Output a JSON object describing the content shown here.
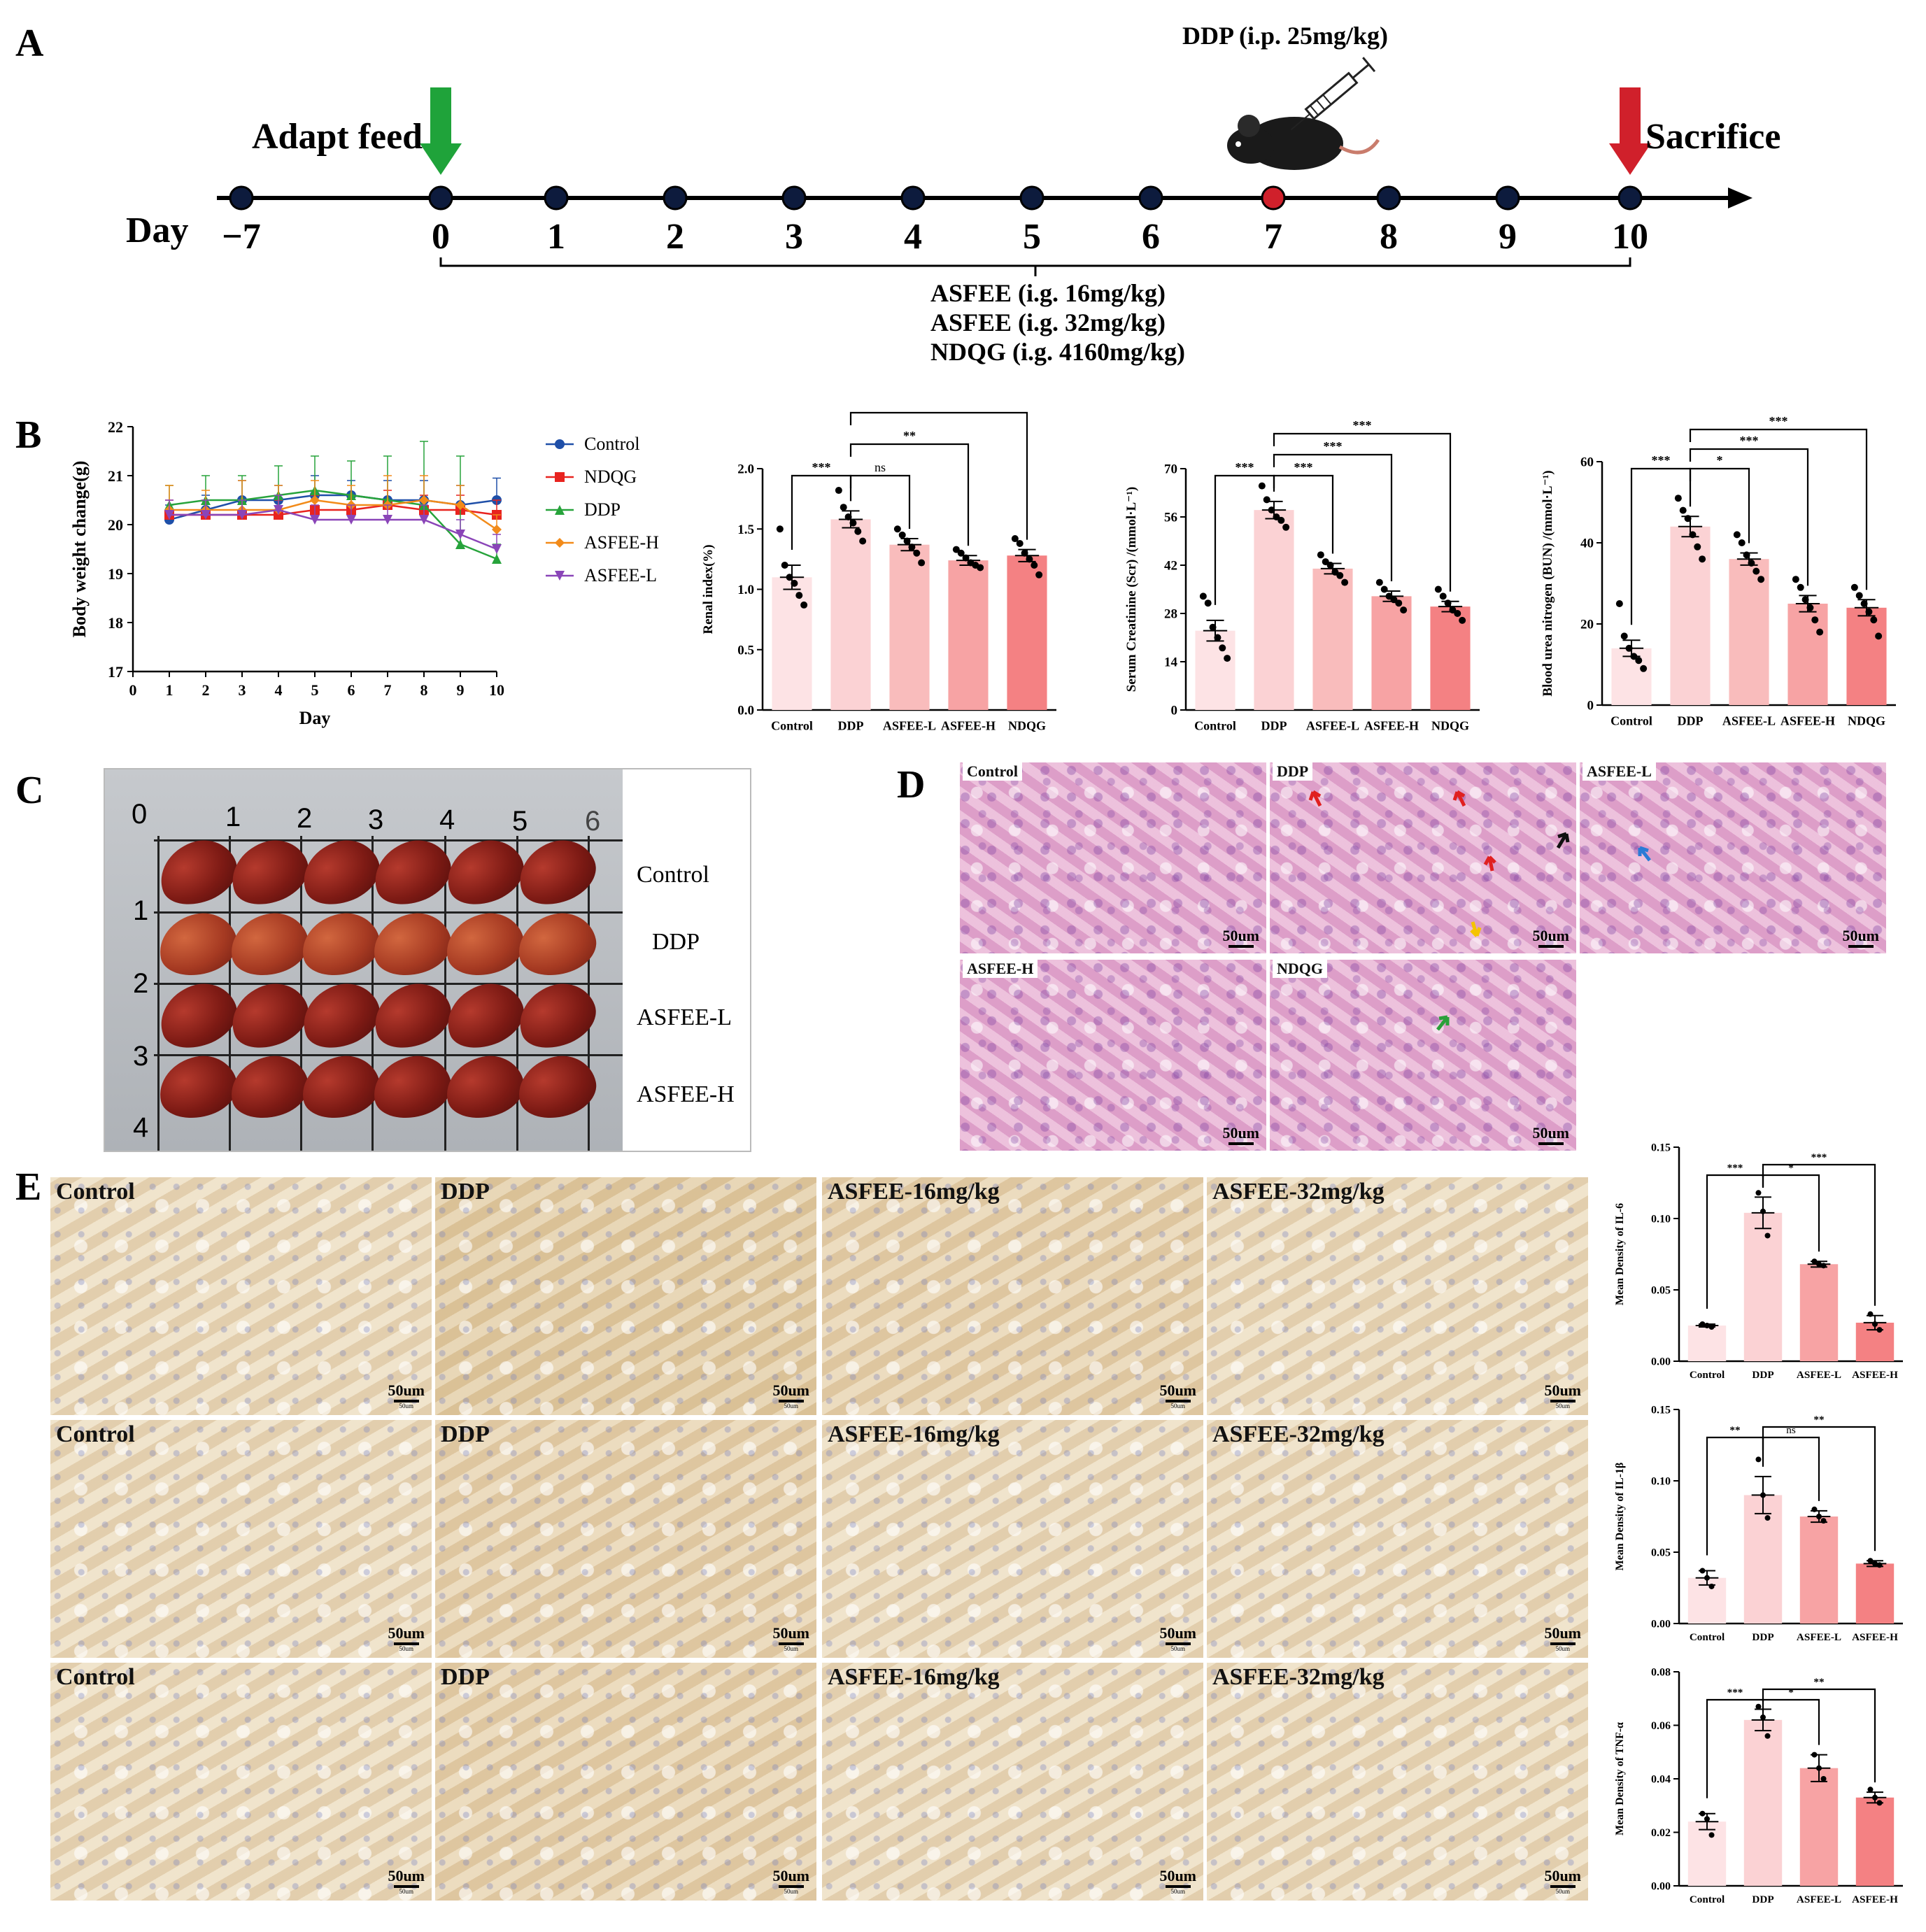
{
  "panel_letters": {
    "a": "A",
    "b": "B",
    "c": "C",
    "d": "D",
    "e": "E"
  },
  "panel_a": {
    "day_label": "Day",
    "days": [
      "−7",
      "0",
      "1",
      "2",
      "3",
      "4",
      "5",
      "6",
      "7",
      "8",
      "9",
      "10"
    ],
    "adapt_label": "Adapt feed",
    "sacrifice_label": "Sacrifice",
    "ddp_label": "DDP (i.p. 25mg/kg)",
    "treatments": [
      "ASFEE (i.g. 16mg/kg)",
      "ASFEE (i.g. 32mg/kg)",
      "NDQG (i.g. 4160mg/kg)"
    ],
    "colors": {
      "adapt_arrow": "#1fa33a",
      "sacrifice_arrow": "#d0202b",
      "ddp_dot": "#d0202b",
      "node": "#0d1b3d"
    }
  },
  "chart_data": [
    {
      "id": "body_weight",
      "type": "line",
      "xlabel": "Day",
      "ylabel": "Body weight change(g)",
      "xlim": [
        0,
        10
      ],
      "ylim": [
        17,
        22
      ],
      "xticks": [
        "0",
        "1",
        "2",
        "3",
        "4",
        "5",
        "6",
        "7",
        "8",
        "9",
        "10"
      ],
      "yticks": [
        "17",
        "18",
        "19",
        "20",
        "21",
        "22"
      ],
      "x": [
        1,
        2,
        3,
        4,
        5,
        6,
        7,
        8,
        9,
        10
      ],
      "series": [
        {
          "name": "Control",
          "color": "#1f4fa8",
          "marker": "circle",
          "values": [
            20.1,
            20.3,
            20.5,
            20.5,
            20.6,
            20.6,
            20.5,
            20.5,
            20.4,
            20.5
          ],
          "err": [
            0.3,
            0.3,
            0.4,
            0.3,
            0.4,
            0.3,
            0.4,
            0.4,
            0.4,
            0.45
          ]
        },
        {
          "name": "NDQG",
          "color": "#e8231f",
          "marker": "square",
          "values": [
            20.2,
            20.2,
            20.2,
            20.2,
            20.3,
            20.3,
            20.4,
            20.3,
            20.3,
            20.2
          ],
          "err": [
            0.3,
            0.3,
            0.3,
            0.3,
            0.3,
            0.3,
            0.3,
            0.3,
            0.3,
            0.3
          ]
        },
        {
          "name": "DDP",
          "color": "#27a33b",
          "marker": "triangle",
          "values": [
            20.4,
            20.5,
            20.5,
            20.6,
            20.7,
            20.6,
            20.5,
            20.4,
            19.6,
            19.3
          ],
          "err": [
            0.4,
            0.5,
            0.5,
            0.6,
            0.7,
            0.7,
            0.9,
            1.3,
            1.8,
            0.3
          ]
        },
        {
          "name": "ASFEE-H",
          "color": "#f28b1a",
          "marker": "diamond",
          "values": [
            20.3,
            20.3,
            20.3,
            20.3,
            20.5,
            20.4,
            20.4,
            20.5,
            20.4,
            19.9
          ],
          "err": [
            0.5,
            0.4,
            0.6,
            0.5,
            0.4,
            0.4,
            0.6,
            0.5,
            0.4,
            0.3
          ]
        },
        {
          "name": "ASFEE-L",
          "color": "#8a45b8",
          "marker": "triangle-down",
          "values": [
            20.2,
            20.2,
            20.2,
            20.3,
            20.1,
            20.1,
            20.1,
            20.1,
            19.8,
            19.5
          ],
          "err": [
            0.3,
            0.3,
            0.3,
            0.3,
            0.3,
            0.3,
            0.3,
            0.3,
            0.3,
            0.3
          ]
        }
      ]
    },
    {
      "id": "renal_index",
      "type": "bar",
      "ylabel": "Renal index(%)",
      "ylim": [
        0,
        2.0
      ],
      "yticks": [
        "0.0",
        "0.5",
        "1.0",
        "1.5",
        "2.0"
      ],
      "categories": [
        "Control",
        "DDP",
        "ASFEE-L",
        "ASFEE-H",
        "NDQG"
      ],
      "values": [
        1.1,
        1.58,
        1.37,
        1.24,
        1.28
      ],
      "err": [
        0.1,
        0.07,
        0.05,
        0.04,
        0.05
      ],
      "points": [
        [
          1.5,
          1.2,
          1.1,
          1.05,
          0.95,
          0.87
        ],
        [
          1.82,
          1.68,
          1.6,
          1.55,
          1.48,
          1.4
        ],
        [
          1.5,
          1.45,
          1.4,
          1.35,
          1.3,
          1.22
        ],
        [
          1.33,
          1.3,
          1.26,
          1.22,
          1.2,
          1.18
        ],
        [
          1.42,
          1.38,
          1.3,
          1.25,
          1.2,
          1.12
        ]
      ],
      "colors": [
        "#fde3e5",
        "#fbd2d4",
        "#f9bcbc",
        "#f7a3a4",
        "#f48183"
      ],
      "sig": [
        {
          "from": 0,
          "to": 1,
          "label": "***",
          "level": 0
        },
        {
          "from": 1,
          "to": 2,
          "label": "ns",
          "level": 0
        },
        {
          "from": 1,
          "to": 3,
          "label": "**",
          "level": 1
        },
        {
          "from": 1,
          "to": 4,
          "label": "*",
          "level": 2
        }
      ]
    },
    {
      "id": "serum_creatinine",
      "type": "bar",
      "ylabel": "Serum Creatinine (Scr) /(mmol·L⁻¹)",
      "ylim": [
        0,
        70
      ],
      "yticks": [
        "0",
        "14",
        "28",
        "42",
        "56",
        "70"
      ],
      "categories": [
        "Control",
        "DDP",
        "ASFEE-L",
        "ASFEE-H",
        "NDQG"
      ],
      "values": [
        23,
        58,
        41,
        33,
        30
      ],
      "err": [
        3,
        2.5,
        1.5,
        1.5,
        1.5
      ],
      "points": [
        [
          33,
          31,
          24,
          21,
          18,
          15
        ],
        [
          65,
          61,
          58,
          56,
          55,
          53
        ],
        [
          45,
          43,
          42,
          40,
          39,
          37
        ],
        [
          37,
          35,
          33,
          32,
          31,
          29
        ],
        [
          35,
          33,
          31,
          29,
          28,
          26
        ]
      ],
      "colors": [
        "#fde3e5",
        "#fbd2d4",
        "#f9bcbc",
        "#f7a3a4",
        "#f48183"
      ],
      "sig": [
        {
          "from": 0,
          "to": 1,
          "label": "***",
          "level": 0
        },
        {
          "from": 1,
          "to": 2,
          "label": "***",
          "level": 0
        },
        {
          "from": 1,
          "to": 3,
          "label": "***",
          "level": 1
        },
        {
          "from": 1,
          "to": 4,
          "label": "***",
          "level": 2
        }
      ]
    },
    {
      "id": "bun",
      "type": "bar",
      "ylabel": "Blood urea nitrogen (BUN) /(mmol·L⁻¹)",
      "ylim": [
        0,
        60
      ],
      "yticks": [
        "0",
        "20",
        "40",
        "60"
      ],
      "categories": [
        "Control",
        "DDP",
        "ASFEE-L",
        "ASFEE-H",
        "NDQG"
      ],
      "values": [
        14,
        44,
        36,
        25,
        24
      ],
      "err": [
        2,
        2.5,
        1.5,
        2,
        2
      ],
      "points": [
        [
          25,
          17,
          14,
          12,
          11,
          9
        ],
        [
          51,
          48,
          46,
          42,
          39,
          36
        ],
        [
          42,
          40,
          37,
          35,
          33,
          31
        ],
        [
          31,
          29,
          26,
          24,
          21,
          18
        ],
        [
          29,
          27,
          25,
          23,
          21,
          17
        ]
      ],
      "colors": [
        "#fde3e5",
        "#fbd2d4",
        "#f9bcbc",
        "#f7a3a4",
        "#f48183"
      ],
      "sig": [
        {
          "from": 0,
          "to": 1,
          "label": "***",
          "level": 0
        },
        {
          "from": 1,
          "to": 2,
          "label": "*",
          "level": 0
        },
        {
          "from": 1,
          "to": 3,
          "label": "***",
          "level": 1
        },
        {
          "from": 1,
          "to": 4,
          "label": "***",
          "level": 2
        }
      ]
    },
    {
      "id": "il6",
      "type": "bar",
      "ylabel": "Mean Density of IL-6",
      "ylim": [
        0,
        0.15
      ],
      "yticks": [
        "0.00",
        "0.05",
        "0.10",
        "0.15"
      ],
      "categories": [
        "Control",
        "DDP",
        "ASFEE-L",
        "ASFEE-H"
      ],
      "values": [
        0.025,
        0.104,
        0.068,
        0.027
      ],
      "err": [
        0.001,
        0.011,
        0.002,
        0.005
      ],
      "points": [
        [
          0.026,
          0.025,
          0.024
        ],
        [
          0.118,
          0.105,
          0.088
        ],
        [
          0.07,
          0.068,
          0.067
        ],
        [
          0.033,
          0.026,
          0.022
        ]
      ],
      "colors": [
        "#fde3e5",
        "#fbd2d4",
        "#f7a3a4",
        "#f48183"
      ],
      "sig": [
        {
          "from": 0,
          "to": 1,
          "label": "***",
          "level": 0
        },
        {
          "from": 1,
          "to": 2,
          "label": "*",
          "level": 0
        },
        {
          "from": 1,
          "to": 3,
          "label": "***",
          "level": 1
        }
      ]
    },
    {
      "id": "il1b",
      "type": "bar",
      "ylabel": "Mean Density of IL-1β",
      "ylim": [
        0,
        0.15
      ],
      "yticks": [
        "0.00",
        "0.05",
        "0.10",
        "0.15"
      ],
      "categories": [
        "Control",
        "DDP",
        "ASFEE-L",
        "ASFEE-H"
      ],
      "values": [
        0.032,
        0.09,
        0.075,
        0.042
      ],
      "err": [
        0.005,
        0.013,
        0.004,
        0.002
      ],
      "points": [
        [
          0.037,
          0.032,
          0.026
        ],
        [
          0.115,
          0.09,
          0.074
        ],
        [
          0.08,
          0.075,
          0.072
        ],
        [
          0.044,
          0.042,
          0.041
        ]
      ],
      "colors": [
        "#fde3e5",
        "#fbd2d4",
        "#f7a3a4",
        "#f48183"
      ],
      "sig": [
        {
          "from": 0,
          "to": 1,
          "label": "**",
          "level": 0
        },
        {
          "from": 1,
          "to": 2,
          "label": "ns",
          "level": 0
        },
        {
          "from": 1,
          "to": 3,
          "label": "**",
          "level": 1
        }
      ]
    },
    {
      "id": "tnfa",
      "type": "bar",
      "ylabel": "Mean Density of TNF-α",
      "ylim": [
        0,
        0.08
      ],
      "yticks": [
        "0.00",
        "0.02",
        "0.04",
        "0.06",
        "0.08"
      ],
      "categories": [
        "Control",
        "DDP",
        "ASFEE-L",
        "ASFEE-H"
      ],
      "values": [
        0.024,
        0.062,
        0.044,
        0.033
      ],
      "err": [
        0.003,
        0.004,
        0.005,
        0.002
      ],
      "points": [
        [
          0.027,
          0.025,
          0.019
        ],
        [
          0.067,
          0.063,
          0.056
        ],
        [
          0.049,
          0.044,
          0.04
        ],
        [
          0.036,
          0.033,
          0.031
        ]
      ],
      "colors": [
        "#fde3e5",
        "#fbd2d4",
        "#f7a3a4",
        "#f48183"
      ],
      "sig": [
        {
          "from": 0,
          "to": 1,
          "label": "***",
          "level": 0
        },
        {
          "from": 1,
          "to": 2,
          "label": "*",
          "level": 0
        },
        {
          "from": 1,
          "to": 3,
          "label": "**",
          "level": 1
        }
      ]
    }
  ],
  "panel_c": {
    "columns": [
      "0",
      "1",
      "2",
      "3",
      "4",
      "5",
      "6"
    ],
    "rows": [
      "1",
      "2",
      "3",
      "4"
    ],
    "groups": [
      "Control",
      "DDP",
      "ASFEE-L",
      "ASFEE-H"
    ]
  },
  "panel_d": {
    "labels": [
      "Control",
      "DDP",
      "ASFEE-L",
      "ASFEE-H",
      "NDQG"
    ],
    "scale": "50um"
  },
  "panel_e": {
    "labels": [
      "Control",
      "DDP",
      "ASFEE-16mg/kg",
      "ASFEE-32mg/kg"
    ],
    "scale": "50um",
    "scale_small": "50um"
  }
}
